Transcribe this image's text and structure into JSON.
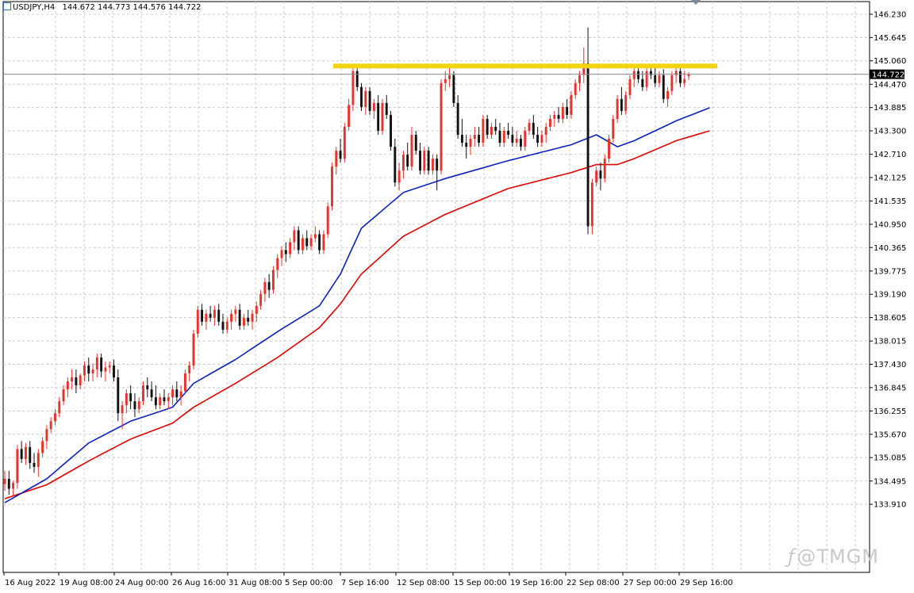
{
  "header": {
    "symbol": "USDJPY,H4",
    "ohlc": "144.672 144.773 144.576 144.722"
  },
  "price_tag": "144.722",
  "watermark": "@TMGM",
  "colors": {
    "bull": "#e8322c",
    "bear": "#111111",
    "ma_fast": "#0b22b8",
    "ma_slow": "#e00000",
    "resistance": "#f2d50f",
    "grid": "#c8c8c8",
    "price_tag_bg": "#000000"
  },
  "chart_data": {
    "type": "candlestick",
    "symbol": "USDJPY",
    "timeframe": "H4",
    "grid": true,
    "y_axis_labels": [
      "146.230",
      "145.645",
      "145.060",
      "144.470",
      "143.885",
      "143.300",
      "142.710",
      "142.125",
      "141.535",
      "140.950",
      "140.365",
      "139.775",
      "139.190",
      "138.605",
      "138.015",
      "137.430",
      "136.845",
      "136.255",
      "135.670",
      "135.085",
      "134.495",
      "133.910"
    ],
    "y_range": [
      133.7,
      146.4
    ],
    "x_axis_labels": [
      "16 Aug 2022",
      "19 Aug 08:00",
      "24 Aug 00:00",
      "26 Aug 16:00",
      "31 Aug 08:00",
      "5 Sep 00:00",
      "7 Sep 16:00",
      "12 Sep 08:00",
      "15 Sep 00:00",
      "19 Sep 16:00",
      "22 Sep 08:00",
      "27 Sep 00:00",
      "29 Sep 16:00"
    ],
    "last_price": 144.722,
    "resistance_level": 144.93,
    "candles": [
      [
        134.42,
        134.75,
        134.25,
        134.55
      ],
      [
        134.55,
        134.75,
        134.15,
        134.3
      ],
      [
        134.3,
        134.5,
        134.1,
        134.45
      ],
      [
        134.45,
        135.4,
        134.3,
        135.3
      ],
      [
        135.3,
        135.5,
        134.95,
        135.05
      ],
      [
        135.05,
        135.45,
        134.9,
        135.35
      ],
      [
        135.35,
        135.5,
        134.8,
        134.95
      ],
      [
        134.95,
        135.2,
        134.7,
        134.85
      ],
      [
        134.85,
        135.3,
        134.6,
        135.2
      ],
      [
        135.2,
        135.6,
        135.1,
        135.5
      ],
      [
        135.5,
        135.9,
        135.3,
        135.8
      ],
      [
        135.8,
        136.1,
        135.7,
        136.0
      ],
      [
        136.0,
        136.3,
        135.9,
        136.2
      ],
      [
        136.2,
        136.6,
        136.1,
        136.5
      ],
      [
        136.5,
        136.9,
        136.4,
        136.8
      ],
      [
        136.8,
        137.1,
        136.6,
        137.0
      ],
      [
        137.0,
        137.3,
        136.8,
        137.1
      ],
      [
        137.1,
        137.3,
        136.7,
        136.9
      ],
      [
        136.9,
        137.2,
        136.8,
        137.15
      ],
      [
        137.15,
        137.5,
        137.0,
        137.4
      ],
      [
        137.4,
        137.6,
        137.0,
        137.2
      ],
      [
        137.2,
        137.45,
        137.0,
        137.3
      ],
      [
        137.3,
        137.7,
        137.1,
        137.6
      ],
      [
        137.6,
        137.7,
        137.1,
        137.25
      ],
      [
        137.25,
        137.5,
        137.0,
        137.35
      ],
      [
        137.35,
        137.5,
        137.2,
        137.4
      ],
      [
        137.4,
        137.55,
        137.0,
        137.1
      ],
      [
        137.1,
        137.3,
        136.0,
        136.2
      ],
      [
        136.2,
        136.5,
        135.8,
        136.4
      ],
      [
        136.4,
        136.8,
        136.2,
        136.7
      ],
      [
        136.7,
        136.9,
        136.3,
        136.5
      ],
      [
        136.5,
        136.7,
        136.1,
        136.3
      ],
      [
        136.3,
        136.6,
        136.2,
        136.5
      ],
      [
        136.5,
        137.0,
        136.4,
        136.9
      ],
      [
        136.9,
        137.1,
        136.6,
        136.8
      ],
      [
        136.8,
        137.0,
        136.5,
        136.6
      ],
      [
        136.6,
        136.9,
        136.3,
        136.4
      ],
      [
        136.4,
        136.7,
        136.3,
        136.6
      ],
      [
        136.6,
        136.8,
        136.4,
        136.5
      ],
      [
        136.5,
        136.7,
        136.3,
        136.6
      ],
      [
        136.6,
        136.9,
        136.4,
        136.8
      ],
      [
        136.8,
        137.0,
        136.5,
        136.6
      ],
      [
        136.6,
        136.9,
        136.4,
        136.75
      ],
      [
        136.75,
        137.3,
        136.7,
        137.2
      ],
      [
        137.2,
        137.5,
        137.0,
        137.4
      ],
      [
        137.4,
        138.3,
        137.3,
        138.2
      ],
      [
        138.2,
        138.9,
        138.1,
        138.8
      ],
      [
        138.8,
        138.95,
        138.4,
        138.5
      ],
      [
        138.5,
        138.8,
        138.3,
        138.7
      ],
      [
        138.7,
        138.9,
        138.5,
        138.6
      ],
      [
        138.6,
        138.9,
        138.4,
        138.8
      ],
      [
        138.8,
        138.95,
        138.4,
        138.5
      ],
      [
        138.5,
        138.7,
        138.2,
        138.3
      ],
      [
        138.3,
        138.6,
        138.2,
        138.5
      ],
      [
        138.5,
        138.8,
        138.3,
        138.7
      ],
      [
        138.7,
        138.9,
        138.5,
        138.8
      ],
      [
        138.8,
        138.95,
        138.3,
        138.4
      ],
      [
        138.4,
        138.7,
        138.3,
        138.6
      ],
      [
        138.6,
        138.8,
        138.4,
        138.5
      ],
      [
        138.5,
        138.8,
        138.3,
        138.7
      ],
      [
        138.7,
        139.0,
        138.5,
        138.9
      ],
      [
        138.9,
        139.3,
        138.8,
        139.2
      ],
      [
        139.2,
        139.6,
        139.0,
        139.5
      ],
      [
        139.5,
        139.7,
        139.1,
        139.3
      ],
      [
        139.3,
        139.9,
        139.2,
        139.8
      ],
      [
        139.8,
        140.2,
        139.6,
        140.1
      ],
      [
        140.1,
        140.4,
        139.9,
        140.3
      ],
      [
        140.3,
        140.5,
        140.0,
        140.2
      ],
      [
        140.2,
        140.6,
        140.1,
        140.5
      ],
      [
        140.5,
        140.9,
        140.3,
        140.8
      ],
      [
        140.8,
        140.9,
        140.2,
        140.3
      ],
      [
        140.3,
        140.7,
        140.2,
        140.6
      ],
      [
        140.6,
        140.8,
        140.3,
        140.4
      ],
      [
        140.4,
        140.7,
        140.3,
        140.6
      ],
      [
        140.6,
        140.9,
        140.5,
        140.7
      ],
      [
        140.7,
        140.8,
        140.2,
        140.3
      ],
      [
        140.3,
        140.8,
        140.2,
        140.7
      ],
      [
        140.7,
        141.5,
        140.6,
        141.4
      ],
      [
        141.4,
        142.5,
        141.3,
        142.4
      ],
      [
        142.4,
        142.9,
        142.2,
        142.8
      ],
      [
        142.8,
        143.1,
        142.5,
        142.6
      ],
      [
        142.6,
        143.5,
        142.5,
        143.4
      ],
      [
        143.4,
        144.1,
        143.3,
        143.95
      ],
      [
        143.95,
        144.9,
        143.8,
        144.8
      ],
      [
        144.8,
        144.95,
        144.3,
        144.4
      ],
      [
        144.4,
        144.5,
        143.8,
        143.9
      ],
      [
        143.9,
        144.4,
        143.7,
        144.3
      ],
      [
        144.3,
        144.4,
        143.7,
        143.8
      ],
      [
        143.8,
        144.1,
        143.6,
        144.0
      ],
      [
        144.0,
        144.2,
        143.2,
        143.3
      ],
      [
        143.3,
        144.1,
        143.2,
        144.0
      ],
      [
        144.0,
        144.2,
        143.6,
        143.7
      ],
      [
        143.7,
        143.8,
        142.8,
        142.9
      ],
      [
        142.9,
        143.1,
        141.9,
        142.0
      ],
      [
        142.0,
        142.5,
        141.8,
        142.3
      ],
      [
        142.3,
        142.8,
        142.1,
        142.7
      ],
      [
        142.7,
        143.0,
        142.3,
        142.4
      ],
      [
        142.4,
        143.4,
        142.3,
        143.2
      ],
      [
        143.2,
        143.3,
        142.7,
        142.8
      ],
      [
        142.8,
        143.0,
        142.2,
        142.3
      ],
      [
        142.3,
        142.9,
        142.2,
        142.8
      ],
      [
        142.8,
        142.9,
        142.2,
        142.3
      ],
      [
        142.3,
        142.7,
        142.2,
        142.6
      ],
      [
        142.6,
        142.7,
        141.8,
        142.3
      ],
      [
        142.3,
        144.6,
        142.2,
        144.5
      ],
      [
        144.5,
        144.8,
        144.3,
        144.6
      ],
      [
        144.6,
        144.9,
        144.4,
        144.7
      ],
      [
        144.7,
        144.8,
        143.9,
        144.0
      ],
      [
        144.0,
        144.2,
        143.1,
        143.2
      ],
      [
        143.2,
        143.6,
        142.9,
        143.0
      ],
      [
        143.0,
        143.2,
        142.6,
        142.9
      ],
      [
        142.9,
        143.2,
        142.7,
        143.1
      ],
      [
        143.1,
        143.4,
        142.9,
        143.2
      ],
      [
        143.2,
        143.4,
        142.9,
        143.0
      ],
      [
        143.0,
        143.7,
        142.9,
        143.6
      ],
      [
        143.6,
        143.7,
        143.1,
        143.2
      ],
      [
        143.2,
        143.5,
        143.1,
        143.4
      ],
      [
        143.4,
        143.6,
        143.2,
        143.3
      ],
      [
        143.3,
        143.5,
        142.9,
        143.0
      ],
      [
        143.0,
        143.4,
        142.9,
        143.3
      ],
      [
        143.3,
        143.5,
        143.1,
        143.2
      ],
      [
        143.2,
        143.4,
        142.9,
        143.0
      ],
      [
        143.0,
        143.3,
        142.9,
        143.1
      ],
      [
        143.1,
        143.2,
        142.8,
        142.9
      ],
      [
        142.9,
        143.4,
        142.8,
        143.3
      ],
      [
        143.3,
        143.6,
        143.2,
        143.5
      ],
      [
        143.5,
        143.7,
        143.1,
        143.2
      ],
      [
        143.2,
        143.4,
        142.9,
        143.0
      ],
      [
        143.0,
        143.3,
        142.9,
        143.2
      ],
      [
        143.2,
        143.5,
        143.0,
        143.4
      ],
      [
        143.4,
        143.7,
        143.3,
        143.6
      ],
      [
        143.6,
        143.8,
        143.4,
        143.7
      ],
      [
        143.7,
        143.9,
        143.5,
        143.6
      ],
      [
        143.6,
        144.0,
        143.5,
        143.9
      ],
      [
        143.9,
        144.1,
        143.6,
        143.7
      ],
      [
        143.7,
        144.3,
        143.6,
        144.2
      ],
      [
        144.2,
        144.6,
        144.1,
        144.5
      ],
      [
        144.5,
        144.8,
        144.3,
        144.7
      ],
      [
        144.7,
        145.4,
        144.5,
        145.0
      ],
      [
        145.0,
        145.9,
        140.7,
        140.9
      ],
      [
        140.9,
        142.1,
        140.7,
        142.0
      ],
      [
        142.0,
        142.4,
        141.9,
        142.3
      ],
      [
        142.3,
        142.5,
        141.8,
        142.1
      ],
      [
        142.1,
        142.7,
        142.0,
        142.6
      ],
      [
        142.6,
        143.2,
        142.5,
        143.1
      ],
      [
        143.1,
        143.7,
        143.0,
        143.6
      ],
      [
        143.6,
        144.2,
        143.5,
        144.1
      ],
      [
        144.1,
        144.4,
        143.7,
        143.8
      ],
      [
        143.8,
        144.3,
        143.7,
        144.2
      ],
      [
        144.2,
        144.7,
        144.1,
        144.6
      ],
      [
        144.6,
        144.9,
        144.4,
        144.8
      ],
      [
        144.8,
        144.95,
        144.5,
        144.6
      ],
      [
        144.6,
        144.8,
        144.3,
        144.4
      ],
      [
        144.4,
        144.9,
        144.3,
        144.8
      ],
      [
        144.8,
        144.95,
        144.6,
        144.7
      ],
      [
        144.7,
        144.9,
        144.4,
        144.5
      ],
      [
        144.5,
        144.8,
        144.4,
        144.7
      ],
      [
        144.7,
        144.85,
        144.0,
        144.1
      ],
      [
        144.1,
        144.4,
        143.9,
        144.3
      ],
      [
        144.3,
        144.8,
        144.2,
        144.7
      ],
      [
        144.7,
        144.9,
        144.5,
        144.8
      ],
      [
        144.8,
        144.9,
        144.4,
        144.5
      ],
      [
        144.5,
        144.8,
        144.4,
        144.6
      ],
      [
        144.672,
        144.773,
        144.576,
        144.722
      ]
    ],
    "ma_fast": {
      "name": "",
      "anchors": [
        [
          0,
          133.95
        ],
        [
          10,
          134.55
        ],
        [
          20,
          135.45
        ],
        [
          30,
          136.0
        ],
        [
          40,
          136.35
        ],
        [
          45,
          136.95
        ],
        [
          55,
          137.55
        ],
        [
          65,
          138.25
        ],
        [
          75,
          138.9
        ],
        [
          80,
          139.7
        ],
        [
          85,
          140.85
        ],
        [
          95,
          141.75
        ],
        [
          105,
          142.1
        ],
        [
          120,
          142.55
        ],
        [
          135,
          142.95
        ],
        [
          141,
          143.2
        ],
        [
          146,
          142.9
        ],
        [
          150,
          143.05
        ],
        [
          160,
          143.55
        ],
        [
          168,
          143.88
        ]
      ]
    },
    "ma_slow": {
      "name": "",
      "anchors": [
        [
          0,
          134.05
        ],
        [
          10,
          134.4
        ],
        [
          20,
          135.0
        ],
        [
          30,
          135.55
        ],
        [
          40,
          135.95
        ],
        [
          45,
          136.35
        ],
        [
          55,
          136.95
        ],
        [
          65,
          137.6
        ],
        [
          75,
          138.35
        ],
        [
          80,
          138.95
        ],
        [
          85,
          139.7
        ],
        [
          95,
          140.65
        ],
        [
          105,
          141.2
        ],
        [
          120,
          141.85
        ],
        [
          135,
          142.25
        ],
        [
          141,
          142.45
        ],
        [
          146,
          142.45
        ],
        [
          150,
          142.6
        ],
        [
          160,
          143.05
        ],
        [
          168,
          143.3
        ]
      ]
    }
  }
}
